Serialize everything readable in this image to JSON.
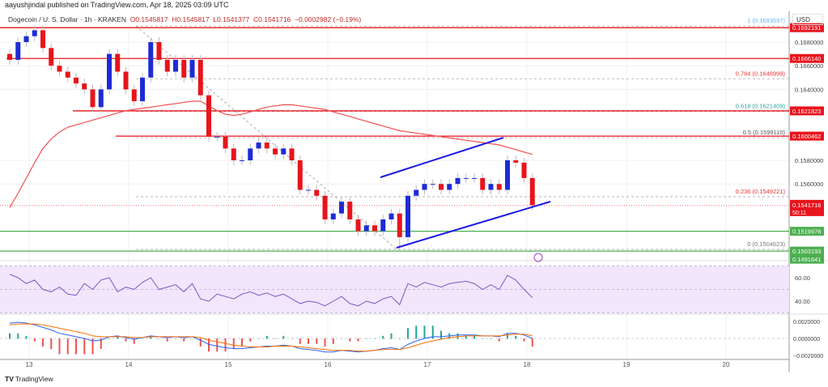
{
  "header": {
    "published": "aayushjindal published on TradingView.com, Apr 18, 2025 03:09 UTC",
    "symbol": "Dogecoin / U. S. Dollar · 1h · KRAKEN",
    "open": "O0.1545817",
    "high": "H0.1545817",
    "low": "L0.1541377",
    "close": "C0.1541716",
    "change": "−0.0002982 (−0.19%)",
    "currency": "USD"
  },
  "brand": "TradingView",
  "colors": {
    "up": "#1e2bd6",
    "down": "#e8141c",
    "ma": "#f0504f",
    "resistance": "#e8141c",
    "support": "#4caf50",
    "channel": "#1a1ae6",
    "rsi": "#7e57c2",
    "rsi_band": "#f1e6fb"
  },
  "chart_data": [
    {
      "type": "candlestick",
      "title": "",
      "x_ticks": [
        "13",
        "14",
        "15",
        "16",
        "17",
        "18",
        "19",
        "20"
      ],
      "y_ticks": [
        "0.1680000",
        "0.1660000",
        "0.1640000",
        "0.1580000",
        "0.1560000"
      ],
      "ylim": [
        0.1485,
        0.1705
      ],
      "interval_hours": 2,
      "closes": [
        0.1665,
        0.168,
        0.1685,
        0.169,
        0.1675,
        0.166,
        0.1655,
        0.165,
        0.1645,
        0.164,
        0.1625,
        0.164,
        0.167,
        0.1655,
        0.164,
        0.163,
        0.165,
        0.168,
        0.1665,
        0.1655,
        0.1665,
        0.165,
        0.1665,
        0.1635,
        0.16,
        0.16,
        0.159,
        0.158,
        0.158,
        0.159,
        0.1595,
        0.159,
        0.1585,
        0.159,
        0.158,
        0.1555,
        0.1555,
        0.155,
        0.153,
        0.1535,
        0.1545,
        0.153,
        0.152,
        0.1525,
        0.152,
        0.153,
        0.1535,
        0.1515,
        0.155,
        0.1555,
        0.156,
        0.156,
        0.1555,
        0.156,
        0.1565,
        0.1565,
        0.1565,
        0.1555,
        0.156,
        0.1555,
        0.158,
        0.1578,
        0.1565,
        0.1542
      ],
      "moving_average": [
        0.154,
        0.1552,
        0.1565,
        0.1578,
        0.159,
        0.1598,
        0.1604,
        0.1608,
        0.161,
        0.1612,
        0.1614,
        0.1616,
        0.1618,
        0.162,
        0.1622,
        0.1623,
        0.1624,
        0.1625,
        0.1626,
        0.1627,
        0.1628,
        0.1629,
        0.163,
        0.163,
        0.1626,
        0.1622,
        0.1619,
        0.1618,
        0.1619,
        0.1621,
        0.1623,
        0.1625,
        0.1626,
        0.1627,
        0.1627,
        0.1626,
        0.1625,
        0.1624,
        0.1623,
        0.1621,
        0.1619,
        0.1617,
        0.1615,
        0.1613,
        0.1611,
        0.1609,
        0.1607,
        0.1605,
        0.1604,
        0.1603,
        0.1602,
        0.1601,
        0.16,
        0.1599,
        0.1598,
        0.1597,
        0.1596,
        0.1595,
        0.1594,
        0.1593,
        0.1591,
        0.1589,
        0.1587,
        0.1585
      ],
      "horizontal_levels": [
        {
          "value": "0.1692191",
          "kind": "resistance"
        },
        {
          "value": "0.1666140",
          "kind": "resistance"
        },
        {
          "value": "0.1621823",
          "kind": "resistance"
        },
        {
          "value": "0.1600462",
          "kind": "resistance"
        },
        {
          "value": "0.1519976",
          "kind": "support"
        },
        {
          "value": "0.1503193",
          "kind": "support"
        },
        {
          "value": "0.1491641",
          "kind": "support"
        }
      ],
      "last_price": {
        "value": "0.1541716",
        "countdown": "50:11"
      },
      "fibonacci": [
        {
          "label": "1 (0.1693597)",
          "value": 0.1693597,
          "color": "#64b5f6"
        },
        {
          "label": "0.764 (0.1648999)",
          "value": 0.1648999,
          "color": "#e53935"
        },
        {
          "label": "0.618 (0.1621409)",
          "value": 0.1621409,
          "color": "#26a69a"
        },
        {
          "label": "0.5 (0.1599110)",
          "value": 0.159911,
          "color": "#555555"
        },
        {
          "label": "0.236 (0.1549221)",
          "value": 0.1549221,
          "color": "#e53935"
        },
        {
          "label": "0 (0.1504623)",
          "value": 0.1504623,
          "color": "#777777"
        }
      ]
    },
    {
      "type": "line",
      "title": "",
      "y_ticks": [
        "60.00",
        "40.00"
      ],
      "ylim": [
        25,
        75
      ],
      "band": [
        30,
        70
      ],
      "values": [
        63,
        60,
        55,
        58,
        50,
        48,
        52,
        46,
        45,
        55,
        50,
        58,
        60,
        48,
        52,
        50,
        56,
        60,
        50,
        52,
        54,
        48,
        55,
        42,
        40,
        46,
        44,
        42,
        46,
        48,
        45,
        47,
        44,
        46,
        42,
        38,
        40,
        39,
        36,
        40,
        44,
        38,
        36,
        40,
        38,
        42,
        44,
        37,
        55,
        52,
        56,
        54,
        52,
        55,
        56,
        57,
        55,
        50,
        54,
        50,
        62,
        58,
        50,
        43
      ]
    },
    {
      "type": "line",
      "title": "",
      "y_ticks": [
        "0.0020000",
        "0.0000000",
        "−0.0020000"
      ],
      "ylim": [
        -0.0022,
        0.0022
      ],
      "macd": [
        0.0018,
        0.0019,
        0.0018,
        0.0016,
        0.0013,
        0.001,
        0.0006,
        0.0004,
        0.0002,
        0.0,
        -0.0003,
        -0.0002,
        0.0002,
        0.0003,
        0.0001,
        -0.0001,
        0.0001,
        0.0003,
        0.0002,
        0.0001,
        0.0002,
        0.0001,
        0.0002,
        -0.0002,
        -0.0007,
        -0.0009,
        -0.0011,
        -0.0012,
        -0.0012,
        -0.0011,
        -0.001,
        -0.0009,
        -0.0009,
        -0.0008,
        -0.0009,
        -0.0012,
        -0.0013,
        -0.0014,
        -0.0016,
        -0.0016,
        -0.0014,
        -0.0015,
        -0.0016,
        -0.0015,
        -0.0014,
        -0.0012,
        -0.0011,
        -0.0013,
        -0.0007,
        -0.0003,
        0.0,
        0.0002,
        0.0002,
        0.0003,
        0.0004,
        0.0004,
        0.0004,
        0.0003,
        0.0003,
        0.0002,
        0.0006,
        0.0006,
        0.0004,
        0.0
      ],
      "signal": [
        0.0016,
        0.0017,
        0.0017,
        0.0017,
        0.0016,
        0.0014,
        0.0012,
        0.001,
        0.0008,
        0.0006,
        0.0003,
        0.0002,
        0.0002,
        0.0002,
        0.0002,
        0.0001,
        0.0001,
        0.0002,
        0.0002,
        0.0002,
        0.0002,
        0.0002,
        0.0002,
        0.0001,
        -0.0002,
        -0.0004,
        -0.0006,
        -0.0008,
        -0.0009,
        -0.001,
        -0.001,
        -0.001,
        -0.0009,
        -0.0009,
        -0.0009,
        -0.001,
        -0.0011,
        -0.0012,
        -0.0013,
        -0.0014,
        -0.0014,
        -0.0014,
        -0.0015,
        -0.0015,
        -0.0014,
        -0.0013,
        -0.0013,
        -0.0013,
        -0.0011,
        -0.0008,
        -0.0005,
        -0.0003,
        -0.0001,
        0.0001,
        0.0002,
        0.0003,
        0.0003,
        0.0003,
        0.0003,
        0.0003,
        0.0004,
        0.0005,
        0.0005,
        0.0003
      ]
    }
  ]
}
